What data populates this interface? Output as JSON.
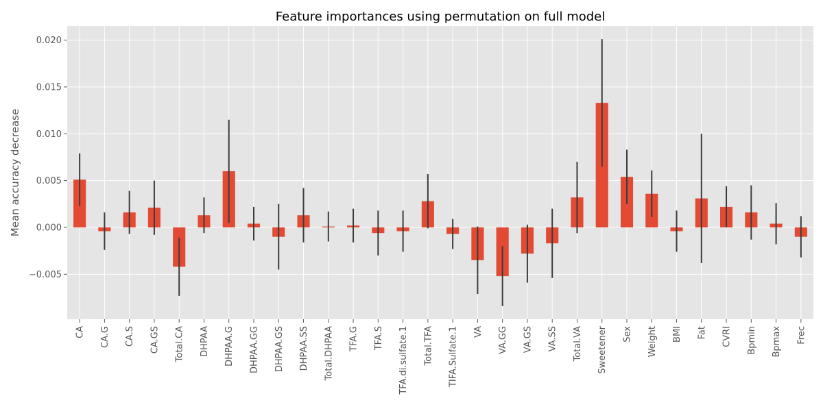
{
  "chart_data": {
    "type": "bar",
    "title": "Feature importances using permutation on full model",
    "xlabel": "",
    "ylabel": "Mean accuracy decrease",
    "ylim": [
      -0.0098,
      0.0215
    ],
    "yticks": [
      -0.005,
      0.0,
      0.005,
      0.01,
      0.015,
      0.02
    ],
    "ytick_labels": [
      "−0.005",
      "0.000",
      "0.005",
      "0.010",
      "0.015",
      "0.020"
    ],
    "grid": true,
    "style": "ggplot",
    "bar_color": "#E24A33",
    "error_color": "#3c3c3c",
    "background_color": "#E5E5E5",
    "grid_color": "#ffffff",
    "categories": [
      "CA",
      "CA.G",
      "CA.S",
      "CA.GS",
      "Total.CA",
      "DHPAA",
      "DHPAA.G",
      "DHPAA.GG",
      "DHPAA.GS",
      "DHPAA.SS",
      "Total.DHPAA",
      "TFA.G",
      "TFA.S",
      "TFA.di.sulfate.1",
      "Total.TFA",
      "TIFA.Sulfate.1",
      "VA",
      "VA.GG",
      "VA.GS",
      "VA.SS",
      "Total.VA",
      "Sweetener",
      "Sex",
      "Weight",
      "BMI",
      "Fat",
      "CVRI",
      "Bpmin",
      "Bpmax",
      "Frec"
    ],
    "values": [
      0.0051,
      -0.0004,
      0.0016,
      0.0021,
      -0.0042,
      0.0013,
      0.006,
      0.0004,
      -0.001,
      0.0013,
      0.0001,
      0.0002,
      -0.0006,
      -0.0004,
      0.0028,
      -0.0007,
      -0.0035,
      -0.0052,
      -0.0028,
      -0.0017,
      0.0032,
      0.0133,
      0.0054,
      0.0036,
      -0.0004,
      0.0031,
      0.0022,
      0.0016,
      0.0004,
      -0.001
    ],
    "errors": [
      0.0028,
      0.002,
      0.0023,
      0.0029,
      0.0031,
      0.0019,
      0.0055,
      0.0018,
      0.0035,
      0.0029,
      0.0016,
      0.0018,
      0.0024,
      0.0022,
      0.0029,
      0.0016,
      0.0036,
      0.0032,
      0.0031,
      0.0037,
      0.0038,
      0.0068,
      0.0029,
      0.0025,
      0.0022,
      0.0069,
      0.0022,
      0.0029,
      0.0022,
      0.0022
    ]
  }
}
